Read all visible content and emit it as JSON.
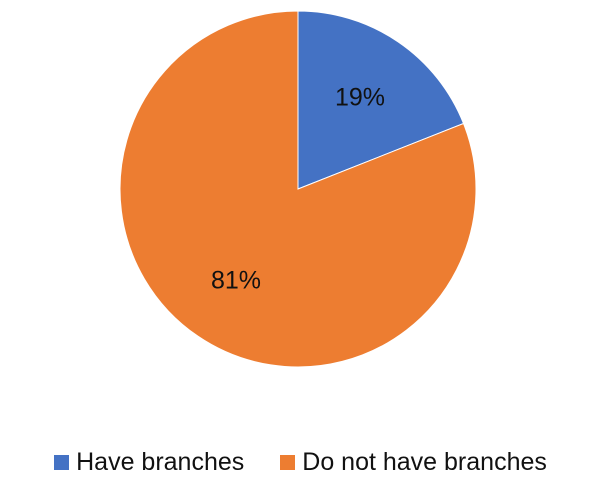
{
  "chart_data": {
    "type": "pie",
    "title": "",
    "slices": [
      {
        "label": "Have branches",
        "value": 19,
        "display": "19%",
        "color": "#4472C4"
      },
      {
        "label": "Do not have branches",
        "value": 81,
        "display": "81%",
        "color": "#ED7D31"
      }
    ],
    "start_angle_deg": 0,
    "direction": "clockwise",
    "legend_position": "bottom"
  }
}
